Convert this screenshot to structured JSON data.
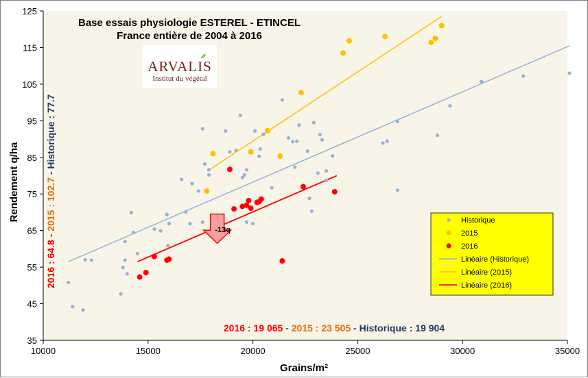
{
  "chart_data": {
    "type": "scatter",
    "title": "Base essais physiologie ESTEREL - ETINCEL",
    "subtitle": "France entière de 2004 à 2016",
    "xlabel": "Grains/m²",
    "ylabel": "Rendement q/ha",
    "xlim": [
      10000,
      35000
    ],
    "ylim": [
      35,
      125
    ],
    "x_ticks": [
      10000,
      15000,
      20000,
      25000,
      30000,
      35000
    ],
    "y_ticks": [
      35,
      45,
      55,
      65,
      75,
      85,
      95,
      105,
      115,
      125
    ],
    "x_tick_labels": [
      "10000",
      "15000",
      "20000",
      "25000",
      "30000",
      "35000"
    ],
    "y_tick_labels": [
      "35",
      "45",
      "55",
      "65",
      "75",
      "85",
      "95",
      "105",
      "115",
      "125"
    ],
    "grid": false,
    "legend_position": "right",
    "series": [
      {
        "name": "Historique",
        "color": "#95b3d7",
        "points": [
          [
            11200,
            50.8
          ],
          [
            11400,
            44.2
          ],
          [
            11900,
            43.3
          ],
          [
            12000,
            57.0
          ],
          [
            12300,
            56.9
          ],
          [
            13700,
            47.7
          ],
          [
            13800,
            54.9
          ],
          [
            13900,
            56.9
          ],
          [
            13900,
            62.0
          ],
          [
            14000,
            53.2
          ],
          [
            14200,
            69.9
          ],
          [
            14300,
            64.5
          ],
          [
            14500,
            58.7
          ],
          [
            15300,
            65.4
          ],
          [
            15600,
            64.9
          ],
          [
            15900,
            69.4
          ],
          [
            15950,
            60.9
          ],
          [
            16000,
            66.9
          ],
          [
            16600,
            79.0
          ],
          [
            16800,
            70.1
          ],
          [
            17000,
            66.9
          ],
          [
            17100,
            77.8
          ],
          [
            17400,
            75.8
          ],
          [
            17700,
            83.2
          ],
          [
            17600,
            67.3
          ],
          [
            17900,
            80.2
          ],
          [
            17600,
            92.8
          ],
          [
            17900,
            81.6
          ],
          [
            18700,
            92.2
          ],
          [
            18900,
            86.5
          ],
          [
            19200,
            86.9
          ],
          [
            19400,
            96.5
          ],
          [
            19500,
            79.5
          ],
          [
            19600,
            80.2
          ],
          [
            19700,
            81.6
          ],
          [
            19700,
            67.3
          ],
          [
            20000,
            66.9
          ],
          [
            20100,
            92.2
          ],
          [
            20300,
            85.3
          ],
          [
            20350,
            87.3
          ],
          [
            20500,
            91.3
          ],
          [
            20900,
            76.7
          ],
          [
            21400,
            100.7
          ],
          [
            21700,
            90.3
          ],
          [
            21900,
            89.3
          ],
          [
            22000,
            82.3
          ],
          [
            22100,
            89.4
          ],
          [
            22200,
            93.8
          ],
          [
            22400,
            77.3
          ],
          [
            22600,
            86.7
          ],
          [
            22900,
            94.5
          ],
          [
            22700,
            73.8
          ],
          [
            22800,
            70.3
          ],
          [
            23100,
            80.7
          ],
          [
            23200,
            91.2
          ],
          [
            23300,
            89.8
          ],
          [
            23500,
            78.7
          ],
          [
            23500,
            81.3
          ],
          [
            23800,
            85.4
          ],
          [
            26200,
            88.9
          ],
          [
            26400,
            89.4
          ],
          [
            26900,
            76.0
          ],
          [
            26900,
            94.8
          ],
          [
            28800,
            91.0
          ],
          [
            29400,
            99.1
          ],
          [
            30900,
            105.7
          ],
          [
            32900,
            107.2
          ],
          [
            35100,
            108.0
          ]
        ]
      },
      {
        "name": "2015",
        "color": "#ffc000",
        "points": [
          [
            17800,
            75.8
          ],
          [
            18100,
            86.0
          ],
          [
            19900,
            86.5
          ],
          [
            20700,
            92.3
          ],
          [
            21300,
            85.3
          ],
          [
            22300,
            102.7
          ],
          [
            24300,
            113.5
          ],
          [
            24600,
            116.8
          ],
          [
            26300,
            118.0
          ],
          [
            28500,
            116.4
          ],
          [
            28700,
            117.5
          ],
          [
            29000,
            121.0
          ]
        ]
      },
      {
        "name": "2016",
        "color": "#ff0000",
        "points": [
          [
            14600,
            52.3
          ],
          [
            14900,
            53.5
          ],
          [
            15300,
            57.9
          ],
          [
            15900,
            56.9
          ],
          [
            16000,
            57.2
          ],
          [
            18900,
            81.7
          ],
          [
            19100,
            70.9
          ],
          [
            19500,
            71.6
          ],
          [
            19700,
            71.9
          ],
          [
            19800,
            73.2
          ],
          [
            19900,
            71.1
          ],
          [
            20200,
            72.7
          ],
          [
            20300,
            72.9
          ],
          [
            20400,
            73.6
          ],
          [
            21400,
            56.7
          ],
          [
            22400,
            77.0
          ],
          [
            23900,
            75.6
          ]
        ]
      }
    ],
    "trendlines": [
      {
        "name": "Linéaire (Historique)",
        "color": "#95b3d7",
        "from": [
          11200,
          56.5
        ],
        "to": [
          35100,
          115.5
        ]
      },
      {
        "name": "Linéaire (2015)",
        "color": "#ffc000",
        "from": [
          17900,
          81.5
        ],
        "to": [
          29000,
          123.5
        ]
      },
      {
        "name": "Linéaire (2016)",
        "color": "#ff0000",
        "from": [
          14500,
          56.5
        ],
        "to": [
          24000,
          80.0
        ]
      }
    ],
    "annotations": {
      "arrow_label": "-13q",
      "arrow_at_x": 18300,
      "arrow_from_y": 69.5,
      "arrow_to_y": 61.5,
      "vertical_parts": [
        {
          "text": "2016 : 64.8",
          "color": "#ff0000"
        },
        {
          "text": " - ",
          "color": "#404040"
        },
        {
          "text": "2015 : 102.7",
          "color": "#e36c09"
        },
        {
          "text": " - Historique : 77.7",
          "color": "#1f3864"
        }
      ],
      "bottom_parts": [
        {
          "text": "2016 : 19 065",
          "color": "#ff0000"
        },
        {
          "text": " - ",
          "color": "#404040"
        },
        {
          "text": "2015 : 23 505",
          "color": "#e36c09"
        },
        {
          "text": " - Historique : 19 904",
          "color": "#1f3864"
        }
      ]
    },
    "legend": [
      {
        "label": "Historique",
        "kind": "marker",
        "color": "#95b3d7"
      },
      {
        "label": "2015",
        "kind": "marker",
        "color": "#ffc000"
      },
      {
        "label": "2016",
        "kind": "marker",
        "color": "#ff0000"
      },
      {
        "label": "Linéaire (Historique)",
        "kind": "line",
        "color": "#95b3d7"
      },
      {
        "label": "Linéaire (2015)",
        "kind": "line",
        "color": "#ffc000"
      },
      {
        "label": "Linéaire (2016)",
        "kind": "line",
        "color": "#ff0000"
      }
    ],
    "legend_bg": "#ffff00"
  },
  "logo": {
    "main": "ARVALIS",
    "sub": "Institut du végétal"
  },
  "colors": {
    "plot_bg": "#f8f4e8",
    "axis": "#000000"
  }
}
